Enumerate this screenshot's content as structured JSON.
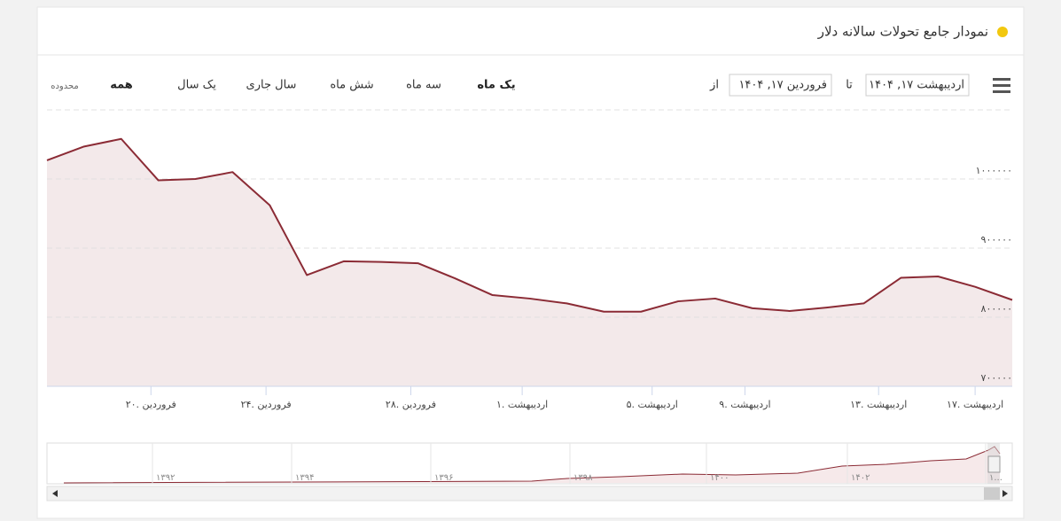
{
  "header": {
    "title": "نمودار جامع تحولات سالانه دلار"
  },
  "range_selector": {
    "zoom_label": "محدوده",
    "buttons": [
      "یک ماه",
      "سه ماه",
      "شش ماه",
      "سال جاری",
      "یک سال",
      "همه"
    ],
    "from_label": "از",
    "from": "فروردین ۱۷, ۱۴۰۴",
    "to_label": "تا",
    "to": "اردیبهشت ۱۷, ۱۴۰۴"
  },
  "chart_data": {
    "type": "line",
    "series": [
      {
        "name": "دلار",
        "color": "#8b2b35",
        "values": [
          1027000,
          1047000,
          1058000,
          998000,
          1000000,
          1010000,
          962000,
          861000,
          881000,
          880000,
          878000,
          856000,
          832000,
          827000,
          820000,
          808000,
          808000,
          823000,
          827000,
          813000,
          809000,
          814000,
          820000,
          857000,
          859000,
          844000,
          825000
        ]
      }
    ],
    "xticks": [
      {
        "value": 2.8,
        "label": "۲۰. فروردین"
      },
      {
        "value": 5.9,
        "label": "۲۴. فروردین"
      },
      {
        "value": 9.8,
        "label": "۲۸. فروردین"
      },
      {
        "value": 12.8,
        "label": "۱. اردیبهشت"
      },
      {
        "value": 16.3,
        "label": "۵. اردیبهشت"
      },
      {
        "value": 18.8,
        "label": "۹. اردیبهشت"
      },
      {
        "value": 22.4,
        "label": "۱۳. اردیبهشت"
      },
      {
        "value": 25,
        "label": "۱۷. اردیبهشت"
      }
    ],
    "ylim": [
      700000,
      1100000
    ],
    "yticks": [
      {
        "value": 700000,
        "label": "۷۰۰۰۰۰"
      },
      {
        "value": 800000,
        "label": "۸۰۰۰۰۰"
      },
      {
        "value": 900000,
        "label": "۹۰۰۰۰۰"
      },
      {
        "value": 1000000,
        "label": "۱۰۰۰۰۰۰"
      }
    ],
    "grid": true
  },
  "navigator": {
    "labels": [
      "۱۳۹۲",
      "۱۳۹۴",
      "۱۳۹۶",
      "۱۳۹۸",
      "۱۴۰۰",
      "۱۴۰۲",
      "۱..."
    ]
  }
}
